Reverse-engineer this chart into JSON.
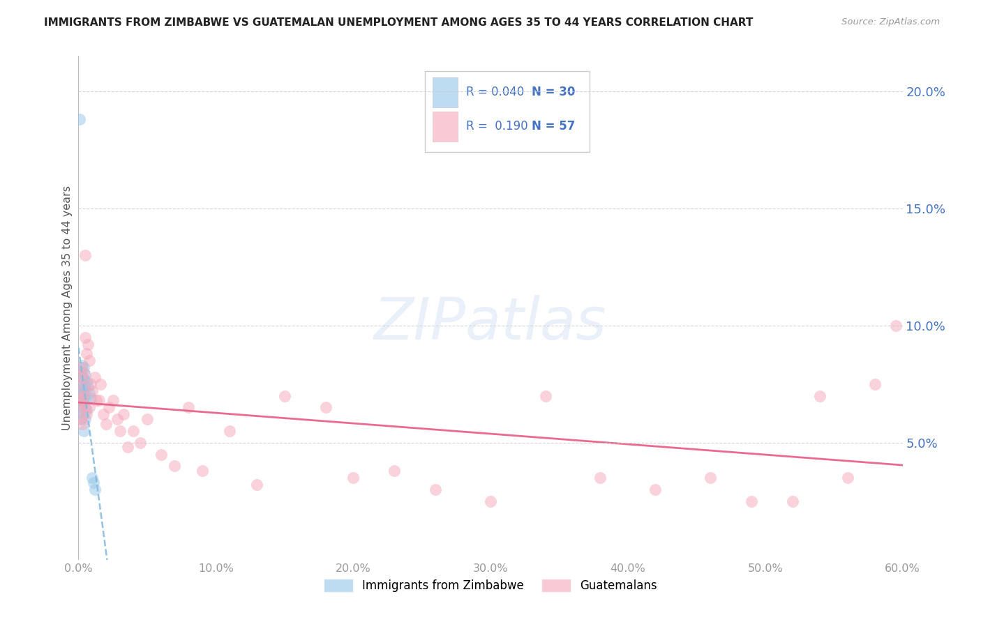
{
  "title": "IMMIGRANTS FROM ZIMBABWE VS GUATEMALAN UNEMPLOYMENT AMONG AGES 35 TO 44 YEARS CORRELATION CHART",
  "source": "Source: ZipAtlas.com",
  "ylabel": "Unemployment Among Ages 35 to 44 years",
  "xlim": [
    0.0,
    0.6
  ],
  "ylim": [
    0.0,
    0.215
  ],
  "yticks_right": [
    0.05,
    0.1,
    0.15,
    0.2
  ],
  "xticks": [
    0.0,
    0.1,
    0.2,
    0.3,
    0.4,
    0.5,
    0.6
  ],
  "legend_r1": "R = 0.040",
  "legend_n1": "N = 30",
  "legend_r2": "R =  0.190",
  "legend_n2": "N = 57",
  "color_blue": "#93c6e8",
  "color_pink": "#f4a7b9",
  "color_blue_line": "#88bbdd",
  "color_pink_line": "#e8638a",
  "color_axis_right": "#4472c4",
  "watermark": "ZIPatlas",
  "zimbabwe_x": [
    0.001,
    0.001,
    0.001,
    0.001,
    0.002,
    0.002,
    0.002,
    0.002,
    0.002,
    0.003,
    0.003,
    0.003,
    0.003,
    0.004,
    0.004,
    0.004,
    0.004,
    0.004,
    0.005,
    0.005,
    0.005,
    0.005,
    0.006,
    0.006,
    0.007,
    0.008,
    0.009,
    0.01,
    0.011,
    0.012
  ],
  "zimbabwe_y": [
    0.188,
    0.072,
    0.068,
    0.063,
    0.08,
    0.075,
    0.07,
    0.065,
    0.06,
    0.083,
    0.078,
    0.073,
    0.068,
    0.082,
    0.077,
    0.072,
    0.067,
    0.055,
    0.079,
    0.074,
    0.069,
    0.06,
    0.076,
    0.064,
    0.074,
    0.071,
    0.069,
    0.035,
    0.033,
    0.03
  ],
  "guatemalan_x": [
    0.001,
    0.001,
    0.002,
    0.002,
    0.002,
    0.003,
    0.003,
    0.003,
    0.004,
    0.004,
    0.005,
    0.005,
    0.005,
    0.006,
    0.006,
    0.007,
    0.008,
    0.008,
    0.009,
    0.01,
    0.012,
    0.013,
    0.015,
    0.016,
    0.018,
    0.02,
    0.022,
    0.025,
    0.028,
    0.03,
    0.033,
    0.036,
    0.04,
    0.045,
    0.05,
    0.06,
    0.07,
    0.08,
    0.09,
    0.11,
    0.13,
    0.15,
    0.18,
    0.2,
    0.23,
    0.26,
    0.3,
    0.34,
    0.38,
    0.42,
    0.46,
    0.49,
    0.52,
    0.54,
    0.56,
    0.58,
    0.595
  ],
  "guatemalan_y": [
    0.075,
    0.065,
    0.082,
    0.07,
    0.06,
    0.078,
    0.068,
    0.058,
    0.08,
    0.07,
    0.13,
    0.095,
    0.065,
    0.088,
    0.062,
    0.092,
    0.085,
    0.065,
    0.075,
    0.072,
    0.078,
    0.068,
    0.068,
    0.075,
    0.062,
    0.058,
    0.065,
    0.068,
    0.06,
    0.055,
    0.062,
    0.048,
    0.055,
    0.05,
    0.06,
    0.045,
    0.04,
    0.065,
    0.038,
    0.055,
    0.032,
    0.07,
    0.065,
    0.035,
    0.038,
    0.03,
    0.025,
    0.07,
    0.035,
    0.03,
    0.035,
    0.025,
    0.025,
    0.07,
    0.035,
    0.075,
    0.1
  ]
}
